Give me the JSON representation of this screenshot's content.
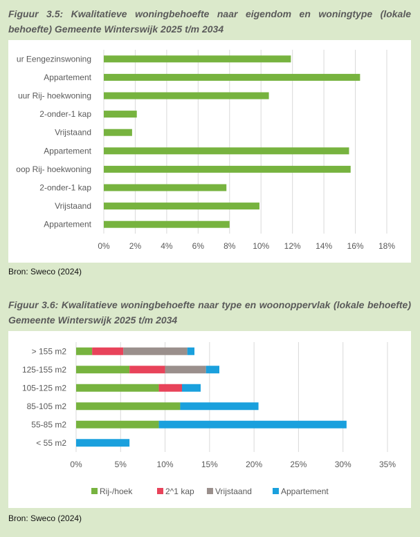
{
  "figure1": {
    "title": "Figuur 3.5: Kwalitatieve woningbehoefte naar eigendom en woningtype (lokale behoefte) Gemeente Winterswijk 2025 t/m 2034",
    "source": "Bron: Sweco (2024)"
  },
  "figure2": {
    "title": "Figuur 3.6: Kwalitatieve woningbehoefte naar type en woonoppervlak (lokale behoefte) Gemeente Winterswijk 2025 t/m 2034",
    "source": "Bron: Sweco (2024)"
  },
  "colors": {
    "green": "#77b33f",
    "red": "#e8435a",
    "gray": "#9a8f8c",
    "blue": "#1aa0dd",
    "grid": "#d9d9d9",
    "axis_text": "#595959"
  },
  "chart_data": [
    {
      "type": "bar",
      "orientation": "horizontal",
      "categories": [
        "Huur Eengezinswoning",
        "Appartement",
        "Huur Rij- hoekwoning",
        "2-onder-1 kap",
        "Vrijstaand",
        "Appartement",
        "Koop Rij- hoekwoning",
        "2-onder-1 kap",
        "Vrijstaand",
        "Appartement"
      ],
      "category_display": [
        "ur Eengezinswoning",
        "Appartement",
        "uur Rij- hoekwoning",
        "2-onder-1 kap",
        "Vrijstaand",
        "Appartement",
        "oop Rij- hoekwoning",
        "2-onder-1 kap",
        "Vrijstaand",
        "Appartement"
      ],
      "values": [
        0.119,
        0.163,
        0.105,
        0.021,
        0.018,
        0.156,
        0.157,
        0.078,
        0.099,
        0.08
      ],
      "xlim": [
        0,
        0.18
      ],
      "xticks": [
        "0%",
        "2%",
        "4%",
        "6%",
        "8%",
        "10%",
        "12%",
        "14%",
        "16%",
        "18%"
      ],
      "grid": true,
      "legend": "none"
    },
    {
      "type": "bar",
      "orientation": "horizontal",
      "stacked": true,
      "categories": [
        "> 155 m2",
        "125-155 m2",
        "105-125 m2",
        "85-105 m2",
        "55-85 m2",
        "< 55 m2"
      ],
      "series": [
        {
          "name": "Rij-/hoek",
          "color": "#77b33f",
          "values": [
            0.018,
            0.06,
            0.093,
            0.117,
            0.093,
            0.0
          ]
        },
        {
          "name": "2^1 kap",
          "color": "#e8435a",
          "values": [
            0.035,
            0.04,
            0.026,
            0.0,
            0.0,
            0.0
          ]
        },
        {
          "name": "Vrijstaand",
          "color": "#9a8f8c",
          "values": [
            0.072,
            0.046,
            0.0,
            0.0,
            0.0,
            0.0
          ]
        },
        {
          "name": "Appartement",
          "color": "#1aa0dd",
          "values": [
            0.008,
            0.015,
            0.021,
            0.088,
            0.211,
            0.06
          ]
        }
      ],
      "xlim": [
        0,
        0.35
      ],
      "xticks": [
        "0%",
        "5%",
        "10%",
        "15%",
        "20%",
        "25%",
        "30%",
        "35%"
      ],
      "grid": true,
      "legend": "bottom"
    }
  ]
}
